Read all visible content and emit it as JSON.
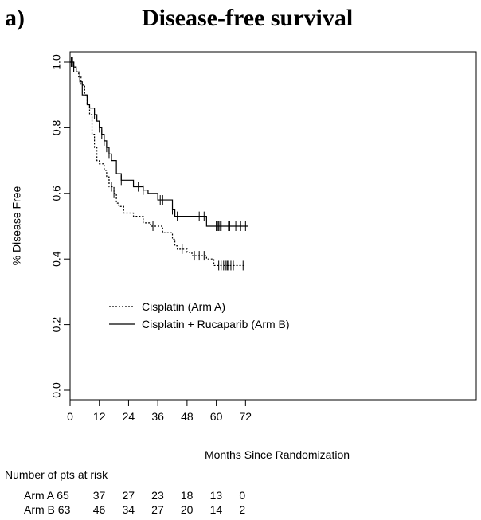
{
  "panel_label": "a)",
  "chart_data": {
    "type": "line",
    "title": "Disease-free survival",
    "xlabel": "Months Since Randomization",
    "ylabel": "% Disease Free",
    "xlim": [
      0,
      74
    ],
    "ylim": [
      0,
      1.0
    ],
    "x_ticks": [
      0,
      12,
      24,
      36,
      48,
      60,
      72
    ],
    "y_ticks": [
      0.0,
      0.2,
      0.4,
      0.6,
      0.8,
      1.0
    ],
    "legend_position": "left-middle",
    "series": [
      {
        "name": "Cisplatin (Arm A)",
        "style": "dotted",
        "x": [
          0,
          1.5,
          2.5,
          3.5,
          4.5,
          6,
          7,
          8,
          9,
          10,
          11,
          12,
          14,
          15,
          16,
          18,
          19,
          20,
          22,
          24,
          26,
          30,
          33,
          38,
          42,
          43,
          44,
          48,
          50,
          56,
          59,
          72
        ],
        "y": [
          1.0,
          0.985,
          0.97,
          0.955,
          0.93,
          0.9,
          0.87,
          0.84,
          0.78,
          0.74,
          0.7,
          0.69,
          0.67,
          0.65,
          0.62,
          0.6,
          0.57,
          0.56,
          0.54,
          0.54,
          0.53,
          0.51,
          0.5,
          0.48,
          0.46,
          0.44,
          0.43,
          0.42,
          0.41,
          0.4,
          0.38,
          0.38
        ],
        "censor_x": [
          1,
          1.5,
          17,
          18,
          25,
          34,
          46,
          51,
          53,
          55,
          61,
          62,
          63,
          64,
          64.5,
          65,
          66,
          67,
          71
        ]
      },
      {
        "name": "Cisplatin + Rucaparib (Arm B)",
        "style": "solid",
        "x": [
          0,
          1.5,
          2.5,
          4,
          5,
          7,
          8,
          10,
          11,
          12,
          13,
          14,
          15,
          16,
          17,
          19,
          21,
          24,
          26,
          30,
          32,
          36,
          38,
          42,
          43,
          48,
          55,
          56,
          59,
          73
        ],
        "y": [
          1.0,
          0.985,
          0.97,
          0.94,
          0.9,
          0.87,
          0.86,
          0.84,
          0.82,
          0.8,
          0.78,
          0.76,
          0.74,
          0.72,
          0.7,
          0.66,
          0.64,
          0.64,
          0.62,
          0.61,
          0.6,
          0.58,
          0.58,
          0.55,
          0.53,
          0.53,
          0.53,
          0.5,
          0.5,
          0.5
        ],
        "censor_x": [
          0.5,
          1,
          1.5,
          10,
          12,
          13,
          14,
          15,
          16,
          21,
          25,
          28,
          30,
          37,
          38,
          42,
          44,
          53,
          55,
          60,
          60.5,
          61,
          61.5,
          62,
          65,
          65.5,
          68,
          70,
          72
        ]
      }
    ],
    "risk_table": {
      "header": "Number of pts at risk",
      "times": [
        0,
        12,
        24,
        36,
        48,
        60,
        72
      ],
      "rows": [
        {
          "label": "Arm A 65",
          "counts": [
            "37",
            "27",
            "23",
            "18",
            "13",
            "0"
          ]
        },
        {
          "label": "Arm B 63",
          "counts": [
            "46",
            "34",
            "27",
            "20",
            "14",
            "2"
          ]
        }
      ]
    }
  }
}
